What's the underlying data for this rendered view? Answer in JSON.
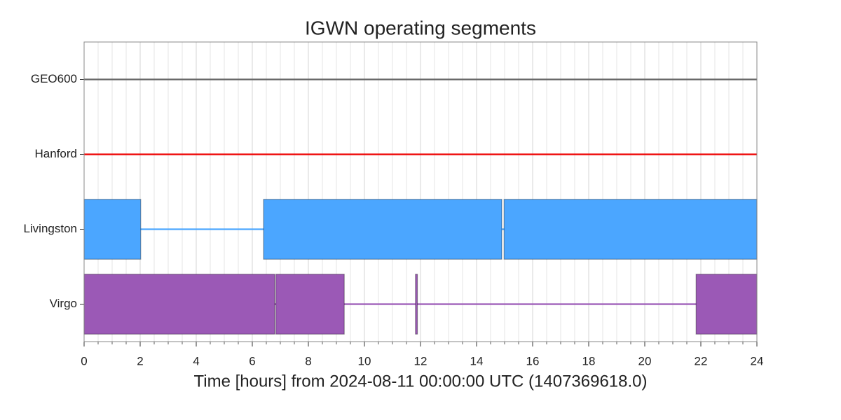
{
  "chart_data": {
    "type": "segments",
    "title": "IGWN operating segments",
    "x_label": "Time [hours] from 2024-08-11 00:00:00 UTC (1407369618.0)",
    "xlim": [
      0,
      24
    ],
    "xticks": [
      0,
      2,
      4,
      6,
      8,
      10,
      12,
      14,
      16,
      18,
      20,
      22,
      24
    ],
    "minor_xticks": [
      0.5,
      1,
      1.5,
      2.5,
      3,
      3.5,
      4.5,
      5,
      5.5,
      6.5,
      7,
      7.5,
      8.5,
      9,
      9.5,
      10.5,
      11,
      11.5,
      12.5,
      13,
      13.5,
      14.5,
      15,
      15.5,
      16.5,
      17,
      17.5,
      18.5,
      19,
      19.5,
      20.5,
      21,
      21.5,
      22.5,
      23,
      23.5
    ],
    "grid": true,
    "series": [
      {
        "name": "GEO600",
        "color": "#666666",
        "known": [
          [
            0,
            24
          ]
        ],
        "segments": []
      },
      {
        "name": "Hanford",
        "color": "#ee0000",
        "known": [
          [
            0,
            24
          ]
        ],
        "segments": []
      },
      {
        "name": "Livingston",
        "color": "#4ba6ff",
        "known": [
          [
            0,
            24
          ]
        ],
        "segments": [
          [
            0,
            2.02
          ],
          [
            6.4,
            14.9
          ],
          [
            14.98,
            24
          ]
        ]
      },
      {
        "name": "Virgo",
        "color": "#9b59b6",
        "known": [
          [
            0,
            24
          ]
        ],
        "segments": [
          [
            0,
            6.8
          ],
          [
            6.84,
            9.28
          ],
          [
            11.82,
            11.89
          ],
          [
            21.83,
            24
          ]
        ]
      }
    ]
  }
}
